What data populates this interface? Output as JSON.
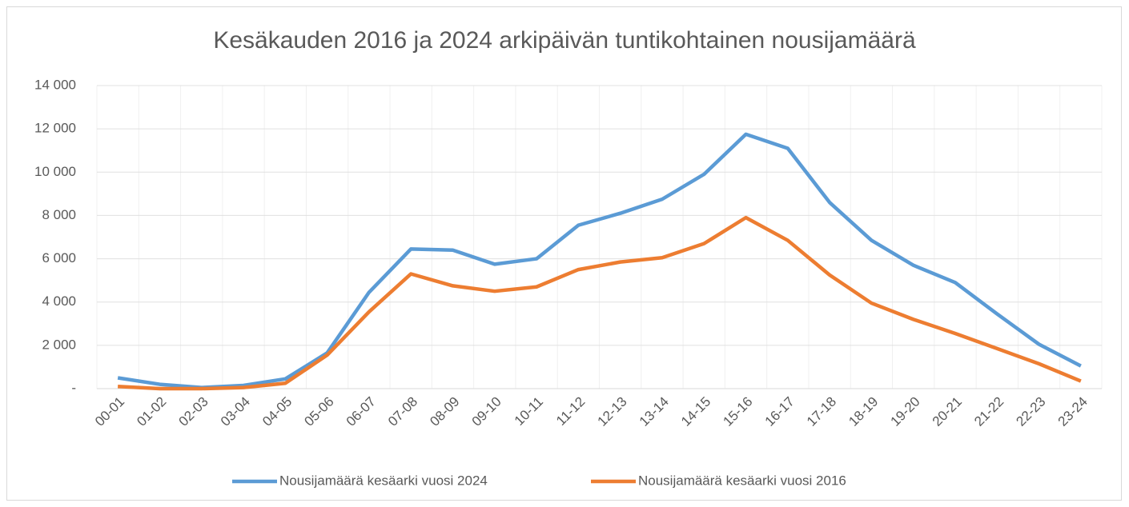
{
  "chart_data": {
    "type": "line",
    "title": "Kesäkauden 2016 ja 2024 arkipäivän tuntikohtainen nousijamäärä",
    "categories": [
      "00-01",
      "01-02",
      "02-03",
      "03-04",
      "04-05",
      "05-06",
      "06-07",
      "07-08",
      "08-09",
      "09-10",
      "10-11",
      "11-12",
      "12-13",
      "13-14",
      "14-15",
      "15-16",
      "16-17",
      "17-18",
      "18-19",
      "19-20",
      "20-21",
      "21-22",
      "22-23",
      "23-24"
    ],
    "series": [
      {
        "name": "Nousijamäärä kesäarki vuosi 2024",
        "color": "#5b9bd5",
        "values": [
          500,
          200,
          50,
          150,
          450,
          1650,
          4450,
          6450,
          6400,
          5750,
          6000,
          7550,
          8100,
          8750,
          9900,
          11750,
          11100,
          8600,
          6850,
          5700,
          4900,
          3450,
          2050,
          1050
        ]
      },
      {
        "name": "Nousijamäärä kesäarki vuosi 2016",
        "color": "#ed7d31",
        "values": [
          100,
          0,
          0,
          50,
          250,
          1550,
          3550,
          5300,
          4750,
          4500,
          4700,
          5500,
          5850,
          6050,
          6700,
          7900,
          6850,
          5250,
          3950,
          3200,
          2550,
          1850,
          1150,
          350
        ]
      }
    ],
    "ylim": [
      0,
      14000
    ],
    "yticks": [
      {
        "value": 0,
        "label": "-"
      },
      {
        "value": 2000,
        "label": "2 000"
      },
      {
        "value": 4000,
        "label": "4 000"
      },
      {
        "value": 6000,
        "label": "6 000"
      },
      {
        "value": 8000,
        "label": "8 000"
      },
      {
        "value": 10000,
        "label": "10 000"
      },
      {
        "value": 12000,
        "label": "12 000"
      },
      {
        "value": 14000,
        "label": "14 000"
      }
    ],
    "grid": true,
    "legend": "bottom"
  }
}
